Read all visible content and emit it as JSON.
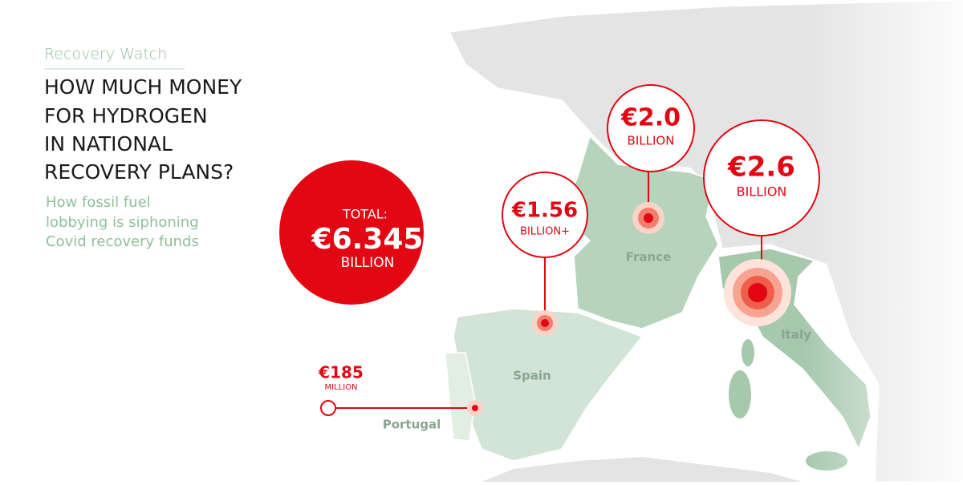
{
  "header": {
    "kicker": "Recovery Watch",
    "title_lines": [
      "HOW MUCH MONEY",
      "FOR HYDROGEN",
      "IN NATIONAL",
      "RECOVERY PLANS?"
    ],
    "subtitle_lines": [
      "How fossil fuel",
      "lobbying is siphoning",
      "Covid recovery funds"
    ]
  },
  "total": {
    "label": "TOTAL:",
    "amount": "€6.345",
    "unit": "BILLION"
  },
  "countries": [
    {
      "name": "France",
      "amount": "€2.0",
      "unit": "BILLION"
    },
    {
      "name": "Spain",
      "amount": "€1.56",
      "unit": "BILLION+"
    },
    {
      "name": "Italy",
      "amount": "€2.6",
      "unit": "BILLION"
    },
    {
      "name": "Portugal",
      "amount": "€185",
      "unit": "MILLION"
    }
  ]
}
